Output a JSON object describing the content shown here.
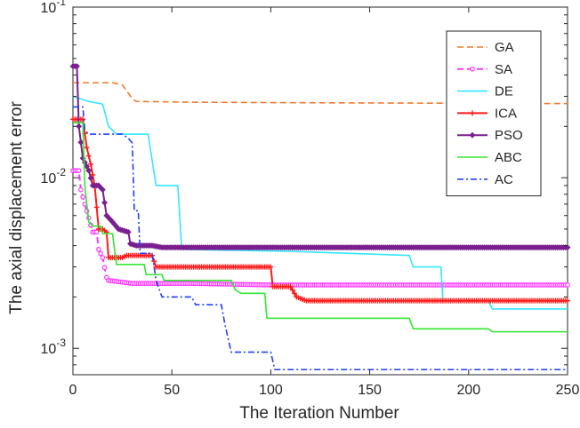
{
  "chart_data": {
    "type": "line",
    "title": "",
    "xlabel": "The Iteration Number",
    "ylabel": "The axial displacement error",
    "xlim": [
      0,
      250
    ],
    "ylim": [
      0.0007,
      0.1
    ],
    "yscale": "log",
    "grid": false,
    "legend_position": "top-right",
    "x_ticks": [
      0,
      50,
      100,
      150,
      200,
      250
    ],
    "x_tick_labels": [
      "0",
      "50",
      "100",
      "150",
      "200",
      "250"
    ],
    "y_ticks": [
      0.001,
      0.01,
      0.1
    ],
    "y_tick_labels": [
      "10^-3",
      "10^-2",
      "10^-1"
    ],
    "series": [
      {
        "name": "GA",
        "color": "#f07a2e",
        "style": "dashed",
        "marker": "none",
        "points": [
          [
            0,
            0.036
          ],
          [
            20,
            0.036
          ],
          [
            25,
            0.035
          ],
          [
            30,
            0.029
          ],
          [
            32,
            0.028
          ],
          [
            60,
            0.0277
          ],
          [
            120,
            0.0275
          ],
          [
            200,
            0.0273
          ],
          [
            250,
            0.0272
          ]
        ]
      },
      {
        "name": "SA",
        "color": "#ff33ff",
        "style": "dashed",
        "marker": "circle",
        "points": [
          [
            0,
            0.011
          ],
          [
            3,
            0.011
          ],
          [
            4,
            0.0085
          ],
          [
            6,
            0.007
          ],
          [
            8,
            0.0058
          ],
          [
            10,
            0.0048
          ],
          [
            12,
            0.0048
          ],
          [
            13,
            0.0038
          ],
          [
            15,
            0.0034
          ],
          [
            17,
            0.0026
          ],
          [
            18,
            0.0025
          ],
          [
            30,
            0.0024
          ],
          [
            60,
            0.0024
          ],
          [
            100,
            0.00235
          ],
          [
            150,
            0.00235
          ],
          [
            200,
            0.00235
          ],
          [
            250,
            0.00235
          ]
        ]
      },
      {
        "name": "DE",
        "color": "#33e6ff",
        "style": "solid",
        "marker": "none",
        "points": [
          [
            0,
            0.03
          ],
          [
            8,
            0.028
          ],
          [
            15,
            0.027
          ],
          [
            18,
            0.02
          ],
          [
            22,
            0.018
          ],
          [
            38,
            0.018
          ],
          [
            42,
            0.009
          ],
          [
            53,
            0.009
          ],
          [
            55,
            0.0038
          ],
          [
            110,
            0.0037
          ],
          [
            140,
            0.0036
          ],
          [
            170,
            0.0035
          ],
          [
            172,
            0.003
          ],
          [
            186,
            0.003
          ],
          [
            187,
            0.0019
          ],
          [
            210,
            0.0019
          ],
          [
            212,
            0.0017
          ],
          [
            250,
            0.0017
          ]
        ]
      },
      {
        "name": "ICA",
        "color": "#ff1a1a",
        "style": "solid",
        "marker": "plus",
        "points": [
          [
            0,
            0.022
          ],
          [
            5,
            0.022
          ],
          [
            7,
            0.015
          ],
          [
            9,
            0.012
          ],
          [
            11,
            0.009
          ],
          [
            13,
            0.005
          ],
          [
            15,
            0.005
          ],
          [
            17,
            0.0048
          ],
          [
            18,
            0.0034
          ],
          [
            25,
            0.0034
          ],
          [
            27,
            0.0035
          ],
          [
            40,
            0.0035
          ],
          [
            42,
            0.003
          ],
          [
            100,
            0.003
          ],
          [
            101,
            0.0023
          ],
          [
            110,
            0.0023
          ],
          [
            113,
            0.002
          ],
          [
            118,
            0.0019
          ],
          [
            250,
            0.0019
          ]
        ]
      },
      {
        "name": "PSO",
        "color": "#7a1f8f",
        "style": "solid",
        "marker": "diamond",
        "points": [
          [
            0,
            0.045
          ],
          [
            2,
            0.045
          ],
          [
            3,
            0.02
          ],
          [
            5,
            0.013
          ],
          [
            8,
            0.011
          ],
          [
            10,
            0.009
          ],
          [
            13,
            0.009
          ],
          [
            15,
            0.0085
          ],
          [
            17,
            0.006
          ],
          [
            20,
            0.0055
          ],
          [
            23,
            0.005
          ],
          [
            28,
            0.0048
          ],
          [
            29,
            0.0041
          ],
          [
            32,
            0.004
          ],
          [
            40,
            0.004
          ],
          [
            45,
            0.0039
          ],
          [
            100,
            0.0039
          ],
          [
            250,
            0.0039
          ]
        ]
      },
      {
        "name": "ABC",
        "color": "#33e633",
        "style": "solid",
        "marker": "none",
        "points": [
          [
            0,
            0.021
          ],
          [
            5,
            0.021
          ],
          [
            6,
            0.009
          ],
          [
            7,
            0.007
          ],
          [
            8,
            0.0055
          ],
          [
            10,
            0.0052
          ],
          [
            14,
            0.0052
          ],
          [
            15,
            0.0047
          ],
          [
            20,
            0.0047
          ],
          [
            22,
            0.0031
          ],
          [
            36,
            0.0031
          ],
          [
            37,
            0.0027
          ],
          [
            45,
            0.0027
          ],
          [
            46,
            0.0025
          ],
          [
            80,
            0.0025
          ],
          [
            82,
            0.0022
          ],
          [
            85,
            0.0021
          ],
          [
            97,
            0.0021
          ],
          [
            98,
            0.0015
          ],
          [
            170,
            0.0015
          ],
          [
            172,
            0.0013
          ],
          [
            210,
            0.0013
          ],
          [
            212,
            0.00125
          ],
          [
            250,
            0.00125
          ]
        ]
      },
      {
        "name": "AC",
        "color": "#1f3fff",
        "style": "dashdot",
        "marker": "none",
        "points": [
          [
            0,
            0.026
          ],
          [
            5,
            0.026
          ],
          [
            6,
            0.019
          ],
          [
            8,
            0.018
          ],
          [
            25,
            0.018
          ],
          [
            28,
            0.017
          ],
          [
            30,
            0.016
          ],
          [
            31,
            0.0064
          ],
          [
            33,
            0.0064
          ],
          [
            34,
            0.0036
          ],
          [
            40,
            0.0036
          ],
          [
            42,
            0.0025
          ],
          [
            45,
            0.002
          ],
          [
            60,
            0.002
          ],
          [
            62,
            0.0018
          ],
          [
            75,
            0.0018
          ],
          [
            77,
            0.00135
          ],
          [
            80,
            0.00095
          ],
          [
            100,
            0.00095
          ],
          [
            102,
            0.00075
          ],
          [
            250,
            0.00075
          ]
        ]
      }
    ]
  }
}
